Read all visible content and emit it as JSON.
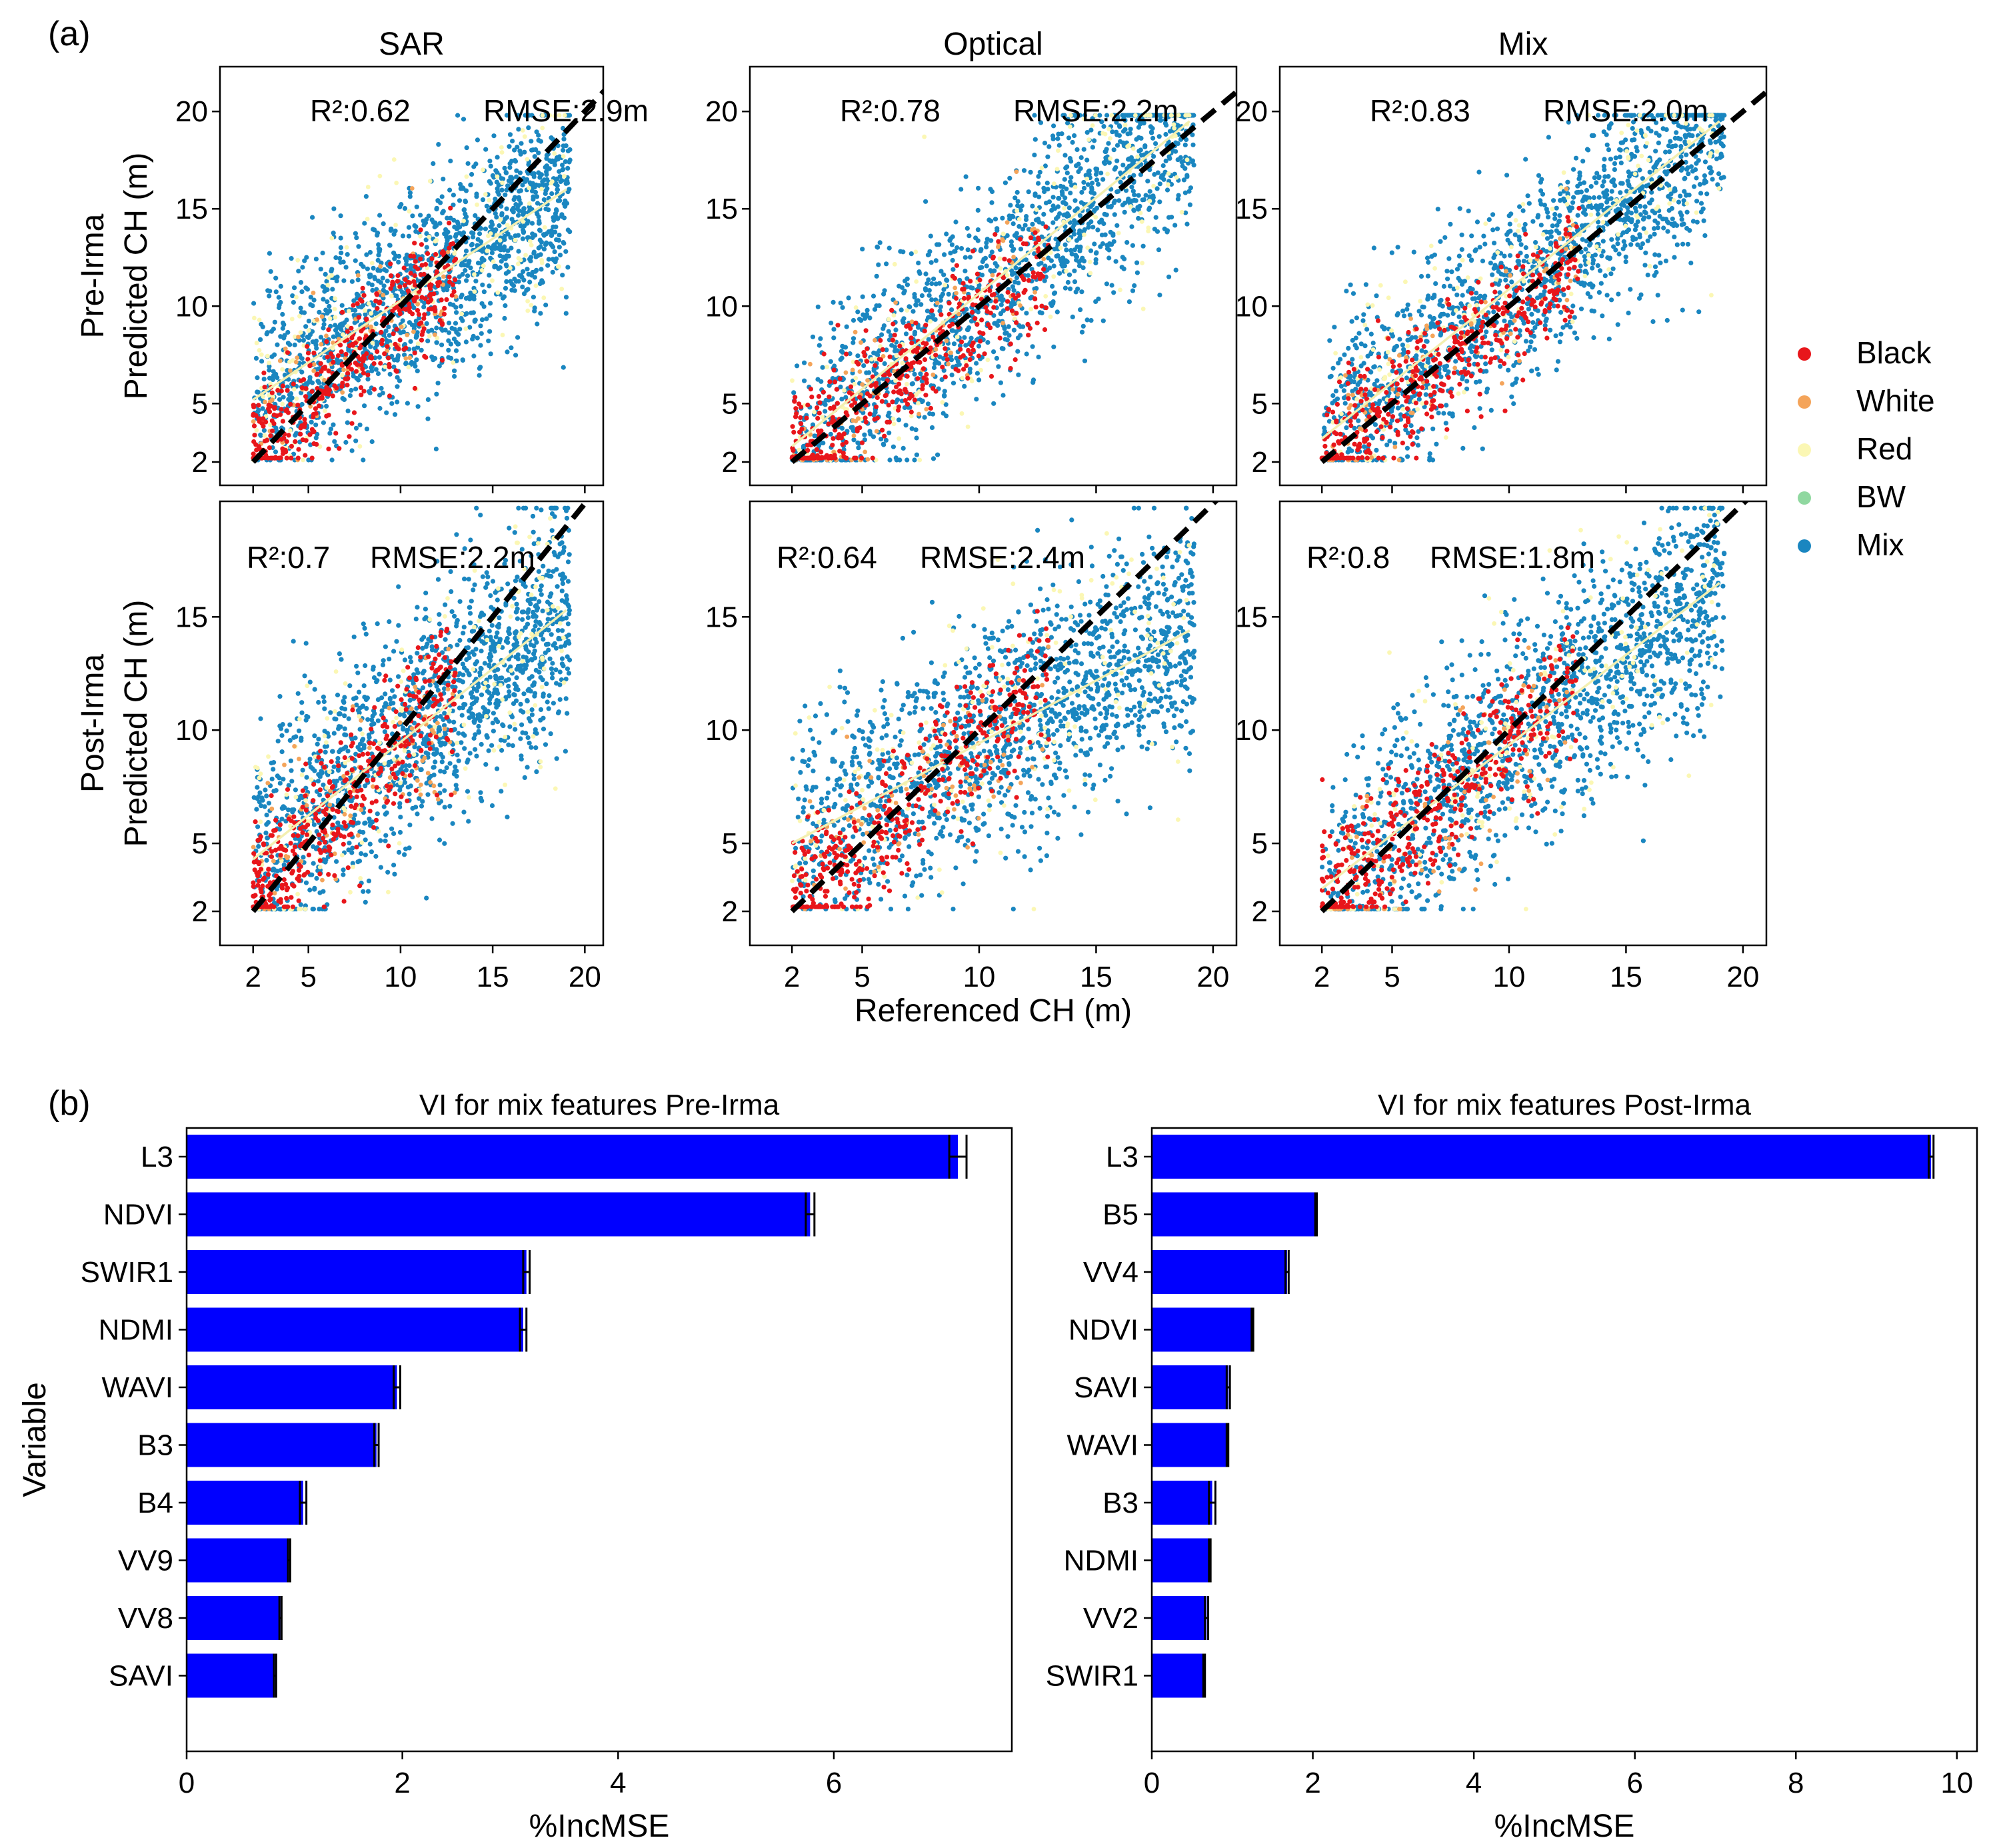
{
  "panel_labels": {
    "a": "(a)",
    "b": "(b)"
  },
  "legend": {
    "items": [
      {
        "name": "Black",
        "color": "#e8161b"
      },
      {
        "name": "White",
        "color": "#f4a45a"
      },
      {
        "name": "Red",
        "color": "#fbf7b4"
      },
      {
        "name": "BW",
        "color": "#90d8a0"
      },
      {
        "name": "Mix",
        "color": "#1a86c0"
      }
    ]
  },
  "colors": {
    "one_to_one": "#000000",
    "fit_line": "#f3efb0",
    "bar": "#0000ff"
  },
  "chart_data": [
    {
      "type": "scatter",
      "panel": "a",
      "columns": [
        "SAR",
        "Optical",
        "Mix"
      ],
      "rows": [
        {
          "title_lines": [
            "Pre-Irma",
            "Predicted CH (m)"
          ]
        },
        {
          "title_lines": [
            "Post-Irma",
            "Predicted CH (m)"
          ]
        }
      ],
      "xlabel": "Referenced CH (m)",
      "xticks": [
        2,
        5,
        10,
        15,
        20
      ],
      "yticks": [
        2,
        5,
        10,
        15,
        20
      ],
      "yticks_shown_pre": [
        "2",
        "5",
        "10",
        "15",
        "20"
      ],
      "yticks_shown_post": [
        "2",
        "5",
        "10",
        "15"
      ],
      "xlim": [
        0.2,
        21
      ],
      "ylim_pre": [
        0.8,
        22.3
      ],
      "ylim_post": [
        0.5,
        20.1
      ],
      "subplots": [
        {
          "row": 0,
          "col": 0,
          "r2": "R²:0.62",
          "rmse": "RMSE:2.9m",
          "fit": [
            [
              2,
              5.2
            ],
            [
              19,
              16.0
            ]
          ]
        },
        {
          "row": 0,
          "col": 1,
          "r2": "R²:0.78",
          "rmse": "RMSE:2.2m",
          "fit": [
            [
              2,
              2.8
            ],
            [
              19,
              19.5
            ]
          ]
        },
        {
          "row": 0,
          "col": 2,
          "r2": "R²:0.83",
          "rmse": "RMSE:2.0m",
          "fit": [
            [
              2,
              3.2
            ],
            [
              19,
              19.5
            ]
          ]
        },
        {
          "row": 1,
          "col": 0,
          "r2": "R²:0.7",
          "rmse": "RMSE:2.2m",
          "fit": [
            [
              2,
              4.3
            ],
            [
              19,
              15.3
            ]
          ]
        },
        {
          "row": 1,
          "col": 1,
          "r2": "R²:0.64",
          "rmse": "RMSE:2.4m",
          "fit": [
            [
              2,
              5.0
            ],
            [
              19,
              14.4
            ]
          ]
        },
        {
          "row": 1,
          "col": 2,
          "r2": "R²:0.8",
          "rmse": "RMSE:1.8m",
          "fit": [
            [
              2,
              3.0
            ],
            [
              19,
              16.5
            ]
          ]
        }
      ]
    },
    {
      "type": "bar",
      "orientation": "horizontal",
      "panel": "b",
      "title": "VI for mix features Pre-Irma",
      "xlabel": "%IncMSE",
      "ylabel": "Variable",
      "xlim": [
        0,
        7.65
      ],
      "xticks": [
        0,
        2,
        4,
        6
      ],
      "categories": [
        "L3",
        "NDVI",
        "SWIR1",
        "NDMI",
        "WAVI",
        "B3",
        "B4",
        "VV9",
        "VV8",
        "SAVI"
      ],
      "values": [
        7.15,
        5.78,
        3.15,
        3.12,
        1.95,
        1.76,
        1.08,
        0.95,
        0.87,
        0.82
      ],
      "errors": [
        0.08,
        0.04,
        0.03,
        0.03,
        0.03,
        0.02,
        0.03,
        0.01,
        0.01,
        0.01
      ]
    },
    {
      "type": "bar",
      "orientation": "horizontal",
      "panel": "b",
      "title": "VI for mix features Post-Irma",
      "xlabel": "%IncMSE",
      "xlim": [
        0,
        10.25
      ],
      "xticks": [
        0,
        2,
        4,
        6,
        8,
        10
      ],
      "categories": [
        "L3",
        "B5",
        "VV4",
        "NDVI",
        "SAVI",
        "WAVI",
        "B3",
        "NDMI",
        "VV2",
        "SWIR1"
      ],
      "values": [
        9.68,
        2.04,
        1.68,
        1.25,
        0.95,
        0.94,
        0.75,
        0.72,
        0.68,
        0.65
      ],
      "errors": [
        0.03,
        0.01,
        0.02,
        0.01,
        0.02,
        0.01,
        0.04,
        0.01,
        0.02,
        0.01
      ]
    }
  ]
}
